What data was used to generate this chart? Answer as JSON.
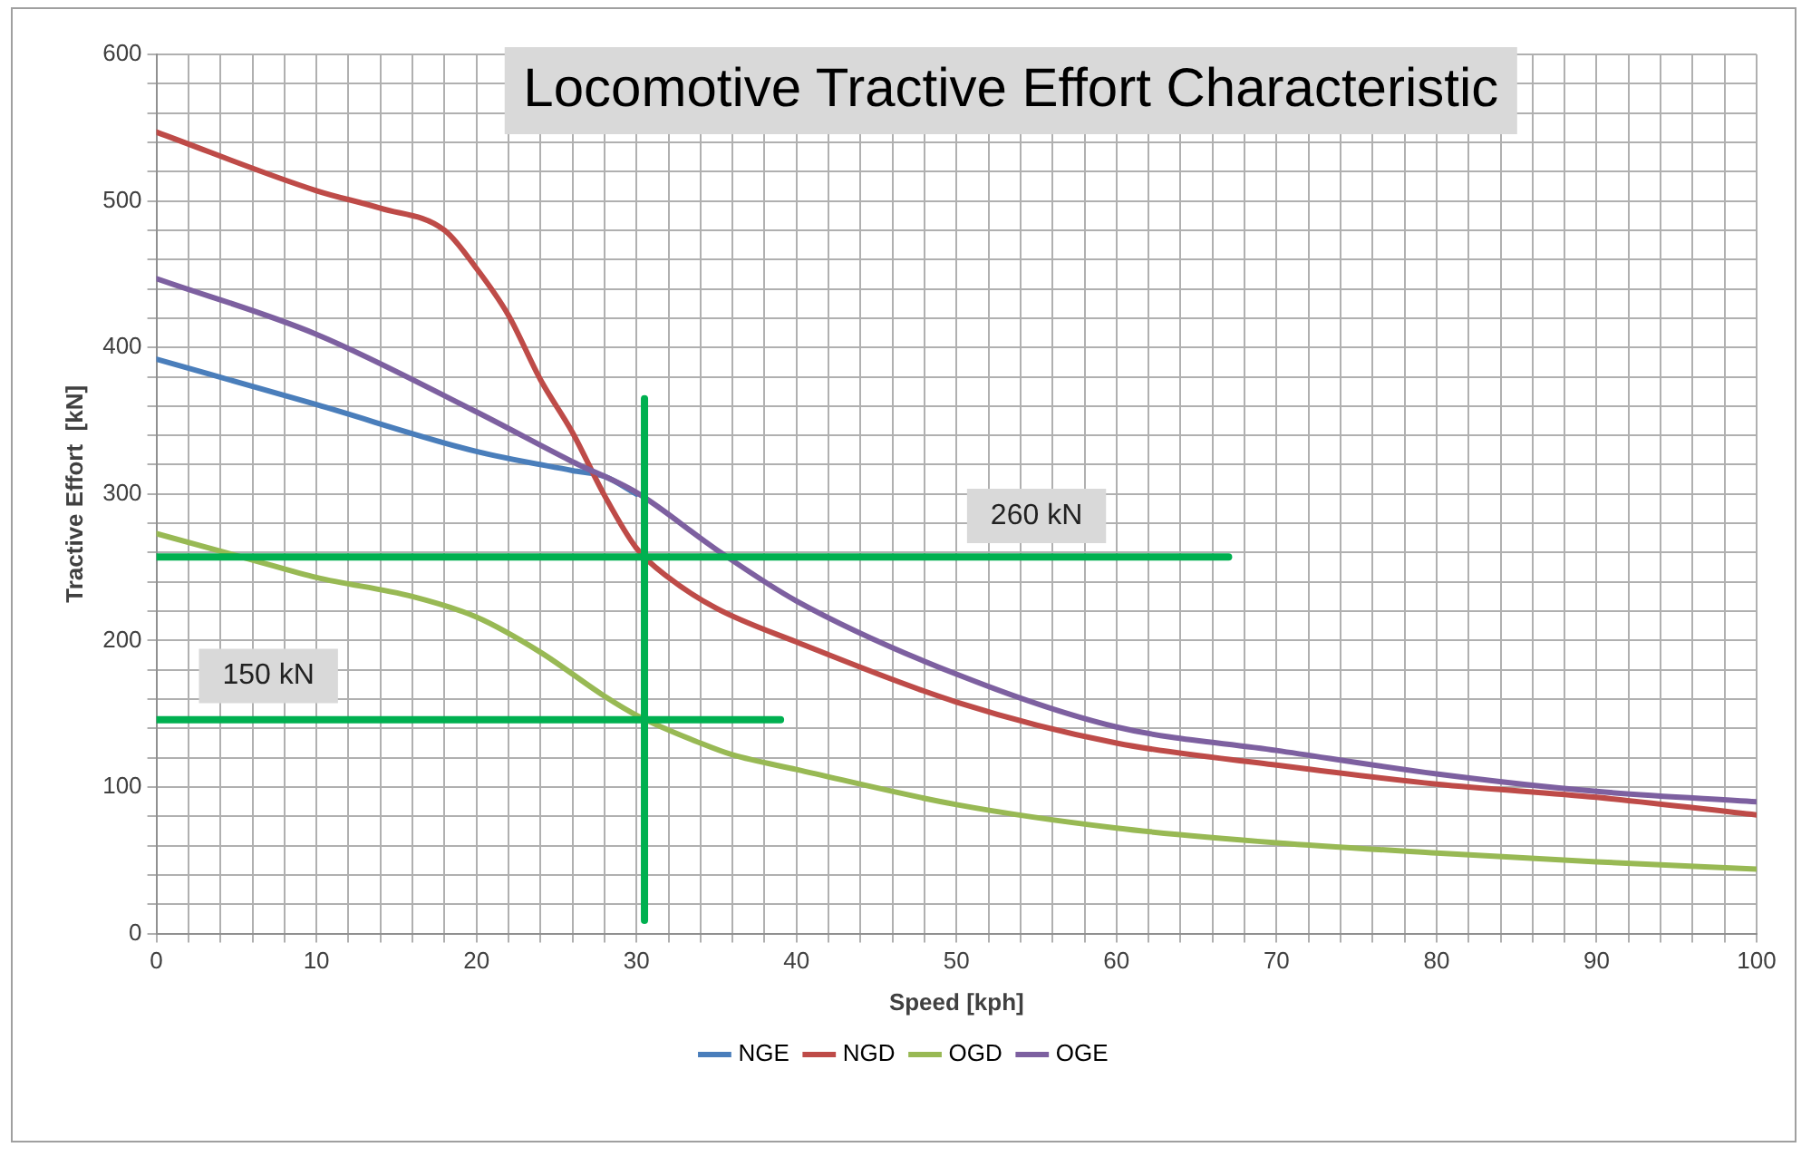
{
  "chart_data": {
    "type": "line",
    "title": "Locomotive Tractive Effort Characteristic",
    "xlabel": "Speed [kph]",
    "ylabel": "Tractive Effort  [kN]",
    "xlim": [
      0,
      100
    ],
    "ylim": [
      0,
      600
    ],
    "xticks": [
      0,
      {
        "value": 2,
        "label": null
      },
      {
        "value": 4,
        "label": null
      },
      {
        "value": 6,
        "label": null
      },
      {
        "value": 8,
        "label": null
      },
      10,
      {
        "value": 12,
        "label": null
      },
      {
        "value": 14,
        "label": null
      },
      {
        "value": 16,
        "label": null
      },
      {
        "value": 18,
        "label": null
      },
      20,
      {
        "value": 22,
        "label": null
      },
      {
        "value": 24,
        "label": null
      },
      {
        "value": 26,
        "label": null
      },
      {
        "value": 28,
        "label": null
      },
      30,
      {
        "value": 32,
        "label": null
      },
      {
        "value": 34,
        "label": null
      },
      {
        "value": 36,
        "label": null
      },
      {
        "value": 38,
        "label": null
      },
      40,
      {
        "value": 42,
        "label": null
      },
      {
        "value": 44,
        "label": null
      },
      {
        "value": 46,
        "label": null
      },
      {
        "value": 48,
        "label": null
      },
      50,
      {
        "value": 52,
        "label": null
      },
      {
        "value": 54,
        "label": null
      },
      {
        "value": 56,
        "label": null
      },
      {
        "value": 58,
        "label": null
      },
      60,
      {
        "value": 62,
        "label": null
      },
      {
        "value": 64,
        "label": null
      },
      {
        "value": 66,
        "label": null
      },
      {
        "value": 68,
        "label": null
      },
      70,
      {
        "value": 72,
        "label": null
      },
      {
        "value": 74,
        "label": null
      },
      {
        "value": 76,
        "label": null
      },
      {
        "value": 78,
        "label": null
      },
      80,
      {
        "value": 82,
        "label": null
      },
      {
        "value": 84,
        "label": null
      },
      {
        "value": 86,
        "label": null
      },
      {
        "value": 88,
        "label": null
      },
      90,
      {
        "value": 92,
        "label": null
      },
      {
        "value": 94,
        "label": null
      },
      {
        "value": 96,
        "label": null
      },
      {
        "value": 98,
        "label": null
      },
      100
    ],
    "yticks": [
      0,
      {
        "value": 20,
        "label": null
      },
      {
        "value": 40,
        "label": null
      },
      {
        "value": 60,
        "label": null
      },
      {
        "value": 80,
        "label": null
      },
      100,
      {
        "value": 120,
        "label": null
      },
      {
        "value": 140,
        "label": null
      },
      {
        "value": 160,
        "label": null
      },
      {
        "value": 180,
        "label": null
      },
      200,
      {
        "value": 220,
        "label": null
      },
      {
        "value": 240,
        "label": null
      },
      {
        "value": 260,
        "label": null
      },
      {
        "value": 280,
        "label": null
      },
      300,
      {
        "value": 320,
        "label": null
      },
      {
        "value": 340,
        "label": null
      },
      {
        "value": 360,
        "label": null
      },
      {
        "value": 380,
        "label": null
      },
      400,
      {
        "value": 420,
        "label": null
      },
      {
        "value": 440,
        "label": null
      },
      {
        "value": 460,
        "label": null
      },
      {
        "value": 480,
        "label": null
      },
      500,
      {
        "value": 520,
        "label": null
      },
      {
        "value": 540,
        "label": null
      },
      {
        "value": 560,
        "label": null
      },
      {
        "value": 580,
        "label": null
      },
      600
    ],
    "grid": true,
    "legend": "bottom",
    "marker": "none",
    "line_style": "solid",
    "series": [
      {
        "name": "NGE",
        "color": "#4a7ebb",
        "x": [
          0,
          10,
          20,
          26,
          28,
          30
        ],
        "values": [
          392,
          361,
          329,
          316,
          312,
          300
        ]
      },
      {
        "name": "NGD",
        "color": "#be4b48",
        "x": [
          0,
          10,
          14,
          18,
          20,
          22,
          24,
          26,
          28,
          30,
          32,
          35,
          40,
          50,
          60,
          70,
          80,
          90,
          100
        ],
        "values": [
          547,
          507,
          495,
          480,
          454,
          422,
          378,
          342,
          299,
          263,
          243,
          222,
          199,
          158,
          130,
          115,
          102,
          93,
          81
        ]
      },
      {
        "name": "OGD",
        "color": "#98b954",
        "x": [
          0,
          6,
          10,
          16,
          20,
          24,
          28,
          30,
          34,
          36,
          40,
          50,
          60,
          70,
          80,
          90,
          100
        ],
        "values": [
          273,
          255,
          243,
          230,
          216,
          192,
          162,
          149,
          130,
          122,
          112,
          88,
          72,
          62,
          55,
          49,
          44
        ]
      },
      {
        "name": "OGE",
        "color": "#7d60a0",
        "x": [
          0,
          10,
          20,
          26,
          30,
          35,
          40,
          50,
          60,
          70,
          80,
          90,
          100
        ],
        "values": [
          447,
          409,
          356,
          322,
          301,
          262,
          227,
          177,
          141,
          125,
          109,
          97,
          90
        ]
      },
      {
        "type": "line",
        "color": "#00b050",
        "x": [
          0,
          67
        ],
        "values": [
          257,
          257
        ]
      },
      {
        "type": "line",
        "color": "#00b050",
        "x": [
          0,
          39
        ],
        "values": [
          146,
          146
        ]
      },
      {
        "type": "line",
        "color": "#00b050",
        "x": [
          30.5,
          30.5
        ],
        "values": [
          9,
          365
        ]
      }
    ],
    "annotations": [
      "260 kN",
      "150 kN"
    ]
  }
}
